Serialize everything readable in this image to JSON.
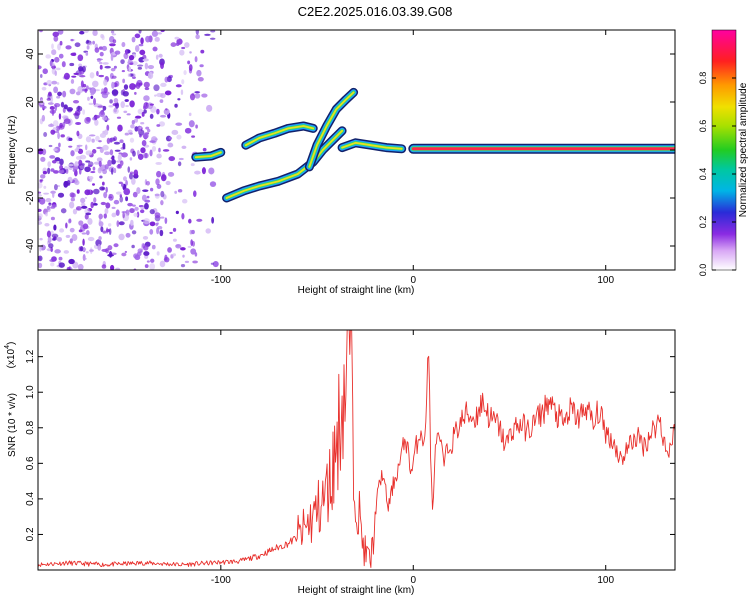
{
  "title": "C2E2.2025.016.03.39.G08",
  "colors": {
    "snr_line": "#e8302c",
    "scatter_points": "#7a1fd6",
    "track_core": "#ff2a4a",
    "track_outline": "#12216b",
    "frame": "#000000"
  },
  "chart_data": [
    {
      "type": "heatmap",
      "xlabel": "Height of straight line (km)",
      "ylabel": "Frequency (Hz)",
      "xlim": [
        -195,
        136
      ],
      "ylim": [
        -50,
        50
      ],
      "xticks": [
        -100,
        0,
        100
      ],
      "yticks": [
        -40,
        -20,
        0,
        20,
        40
      ],
      "grid": false,
      "noise_region_x": [
        -195,
        -100
      ],
      "tracks": [
        {
          "name": "",
          "points": [
            [
              -113,
              -3
            ],
            [
              -105,
              -2.5
            ],
            [
              -100,
              -1
            ]
          ]
        },
        {
          "name": "",
          "points": [
            [
              -97,
              -20
            ],
            [
              -88,
              -17
            ],
            [
              -80,
              -15
            ],
            [
              -70,
              -13
            ],
            [
              -60,
              -10
            ],
            [
              -52,
              -5
            ],
            [
              -47,
              0
            ],
            [
              -42,
              4
            ],
            [
              -37,
              8
            ]
          ]
        },
        {
          "name": "",
          "points": [
            [
              -87,
              2
            ],
            [
              -80,
              5
            ],
            [
              -72,
              7
            ],
            [
              -65,
              9
            ],
            [
              -57,
              10
            ],
            [
              -52,
              9
            ]
          ]
        },
        {
          "name": "",
          "points": [
            [
              -54,
              -7
            ],
            [
              -50,
              2
            ],
            [
              -45,
              10
            ],
            [
              -40,
              17
            ],
            [
              -35,
              21
            ],
            [
              -31,
              24
            ]
          ]
        },
        {
          "name": "",
          "points": [
            [
              -37,
              1
            ],
            [
              -30,
              3
            ],
            [
              -22,
              2
            ],
            [
              -14,
              1
            ],
            [
              -6,
              0.5
            ]
          ]
        },
        {
          "name": "",
          "points": [
            [
              0,
              0.5
            ],
            [
              136,
              0.5
            ]
          ]
        }
      ],
      "colorbar": {
        "label": "Normalized spectral amplitude",
        "range": [
          0,
          1
        ],
        "ticks": [
          0.0,
          0.2,
          0.4,
          0.6,
          0.8
        ],
        "tick_labels": [
          "0.0",
          "0.2",
          "0.4",
          "0.6",
          "0.8"
        ]
      }
    },
    {
      "type": "line",
      "xlabel": "Height of straight line (km)",
      "ylabel": "SNR (10 * v/v)",
      "multiplier_label": "(x10",
      "multiplier_exponent": "4",
      "multiplier_close": ")",
      "xlim": [
        -195,
        136
      ],
      "ylim": [
        0,
        1.35
      ],
      "xticks": [
        -100,
        0,
        100
      ],
      "yticks": [
        0.2,
        0.4,
        0.6,
        0.8,
        1.0,
        1.2
      ],
      "grid": false,
      "series": [
        {
          "name": "",
          "color": "#e8302c",
          "x": [
            -195,
            -180,
            -160,
            -140,
            -120,
            -105,
            -90,
            -80,
            -72,
            -65,
            -58,
            -52,
            -47,
            -43,
            -40,
            -37,
            -35,
            -33,
            -31,
            -29,
            -27,
            -25,
            -22,
            -19,
            -16,
            -13,
            -10,
            -7,
            -4,
            -1,
            2,
            4,
            6,
            8,
            9,
            10,
            12,
            14,
            16,
            18,
            20,
            24,
            28,
            32,
            36,
            40,
            44,
            48,
            52,
            56,
            60,
            64,
            68,
            70,
            74,
            78,
            82,
            86,
            90,
            94,
            96,
            100,
            104,
            108,
            112,
            116,
            120,
            124,
            128,
            132,
            136
          ],
          "y": [
            0.03,
            0.04,
            0.03,
            0.04,
            0.03,
            0.04,
            0.05,
            0.08,
            0.12,
            0.15,
            0.2,
            0.3,
            0.38,
            0.5,
            0.7,
            0.95,
            1.05,
            1.35,
            0.6,
            0.4,
            0.2,
            0.1,
            0.05,
            0.4,
            0.55,
            0.35,
            0.5,
            0.6,
            0.75,
            0.55,
            0.72,
            0.8,
            0.7,
            1.3,
            0.6,
            0.35,
            0.75,
            0.7,
            0.6,
            0.68,
            0.72,
            0.82,
            0.88,
            0.85,
            0.95,
            0.85,
            0.82,
            0.7,
            0.8,
            0.82,
            0.78,
            0.85,
            0.9,
            0.95,
            0.88,
            0.82,
            0.9,
            0.85,
            0.92,
            0.8,
            0.9,
            0.78,
            0.72,
            0.62,
            0.7,
            0.75,
            0.7,
            0.78,
            0.85,
            0.65,
            0.78
          ]
        }
      ]
    }
  ]
}
